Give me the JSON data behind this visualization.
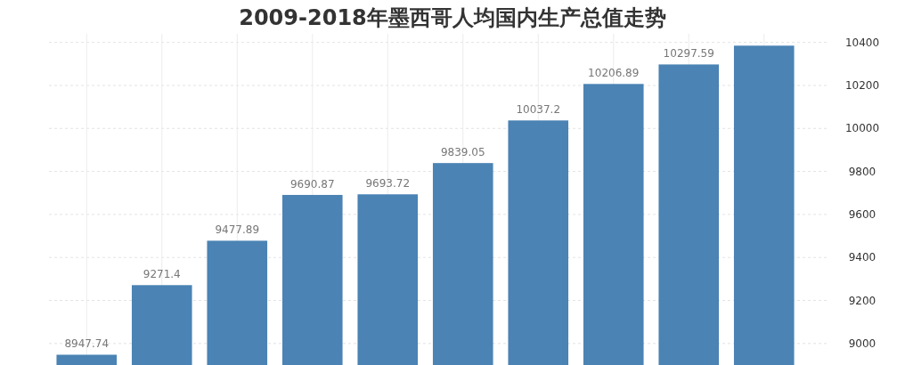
{
  "chart_data": {
    "type": "bar",
    "title": "2009-2018年墨西哥人均国内生产总值走势",
    "categories": [
      null,
      null,
      null,
      null,
      null,
      null,
      null,
      null,
      null,
      null
    ],
    "values": [
      8947.74,
      9271.4,
      9477.89,
      9690.87,
      9693.72,
      9839.05,
      10037.2,
      10206.89,
      10297.59,
      10385
    ],
    "value_labels": [
      "8947.74",
      "9271.4",
      "9477.89",
      "9690.87",
      "9693.72",
      "9839.05",
      "10037.2",
      "10206.89",
      "10297.59",
      null
    ],
    "color": "#4a83b4",
    "ylim": [
      8900,
      10440
    ],
    "yticks": [
      9000,
      9200,
      9400,
      9600,
      9800,
      10000,
      10200,
      10400
    ],
    "grid": true
  }
}
